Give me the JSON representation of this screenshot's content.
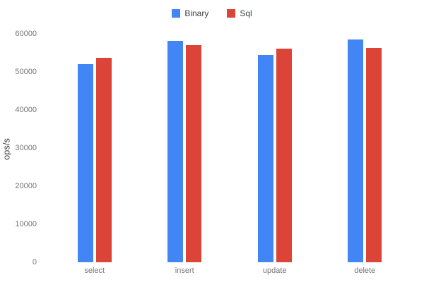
{
  "chart_data": {
    "type": "bar",
    "title": "",
    "xlabel": "",
    "ylabel": "ops/s",
    "categories": [
      "select",
      "insert",
      "update",
      "delete"
    ],
    "series": [
      {
        "name": "Binary",
        "color": "#4285F4",
        "values": [
          52000,
          58200,
          54400,
          58500
        ]
      },
      {
        "name": "Sql",
        "color": "#DB4437",
        "values": [
          53700,
          57100,
          56100,
          56300
        ]
      }
    ],
    "ylim": [
      0,
      60000
    ],
    "yticks": [
      0,
      10000,
      20000,
      30000,
      40000,
      50000,
      60000
    ],
    "grid": false,
    "legend_position": "top-center"
  }
}
